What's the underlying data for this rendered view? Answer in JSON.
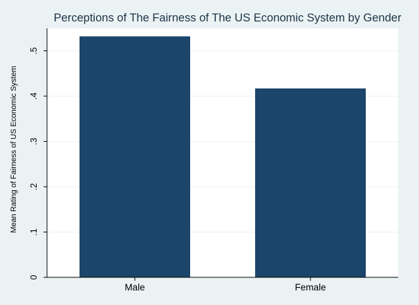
{
  "chart_data": {
    "type": "bar",
    "title": "Perceptions of The Fairness of The US Economic System by Gender",
    "xlabel": "",
    "ylabel": "Mean Rating of Fairness of US Economic System",
    "categories": [
      "Male",
      "Female"
    ],
    "values": [
      0.532,
      0.417
    ],
    "ylim": [
      0,
      0.55
    ],
    "yticks": [
      0,
      0.1,
      0.2,
      0.3,
      0.4,
      0.5
    ],
    "ytick_labels": [
      "0",
      ".1",
      ".2",
      ".3",
      ".4",
      ".5"
    ],
    "grid": true,
    "legend": "none",
    "colors": {
      "bar": "#1b456b",
      "plot_background": "#ffffff",
      "outer_background": "#eaf2f3",
      "gridline": "#eaf2f3",
      "title": "#1e3248"
    }
  }
}
